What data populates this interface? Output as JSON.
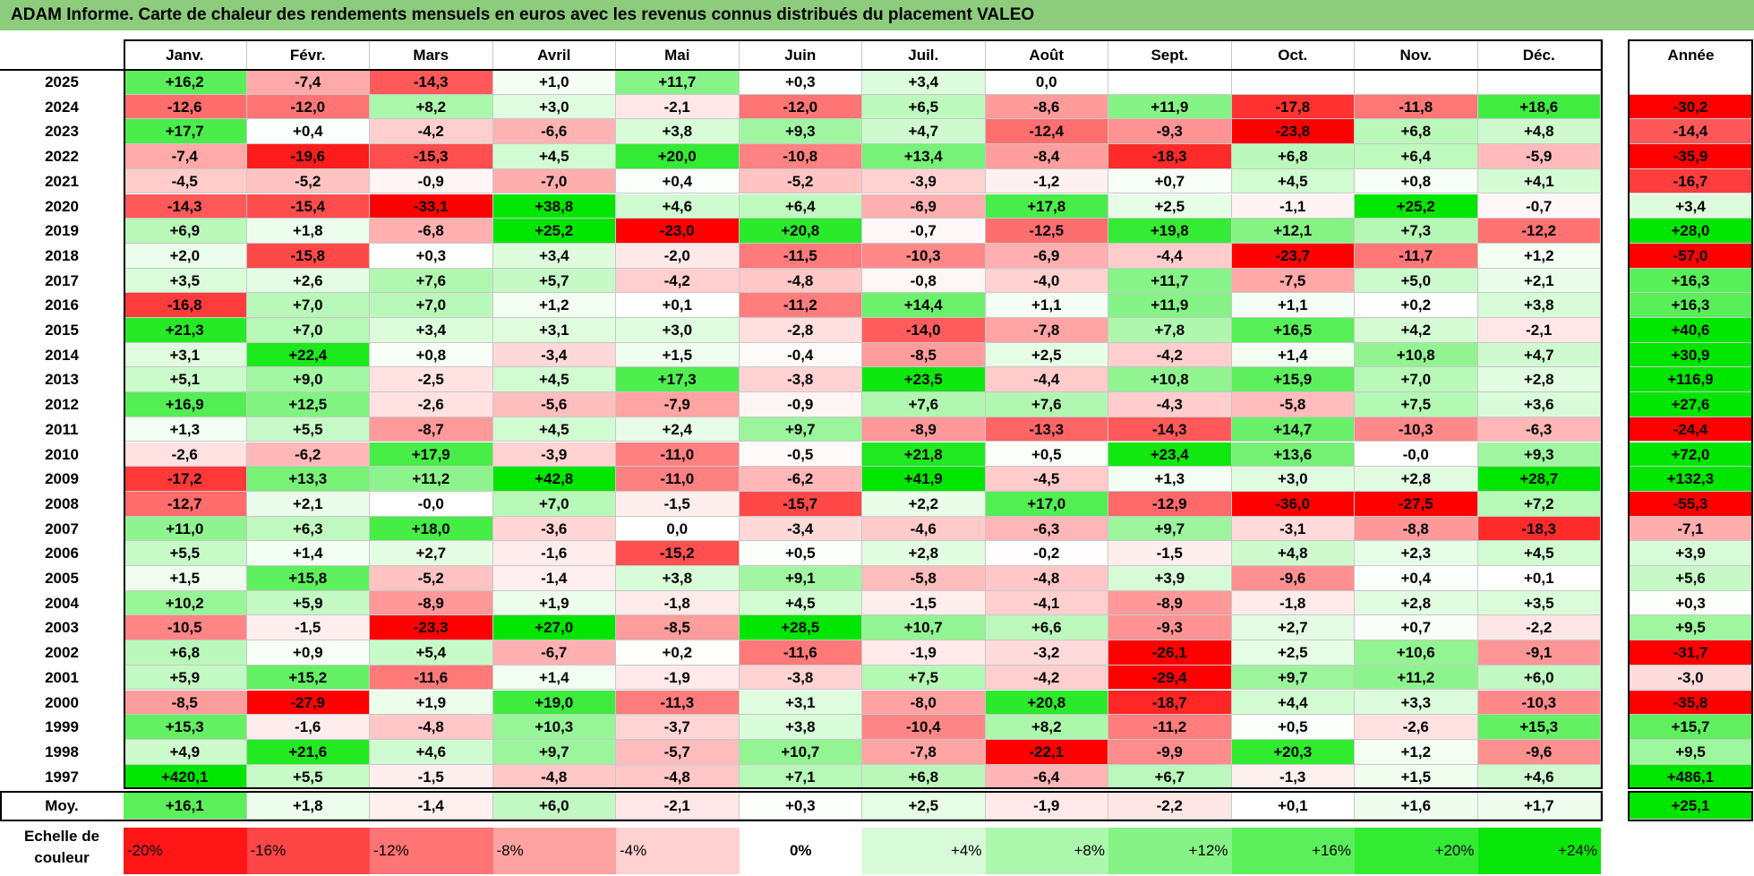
{
  "title": "ADAM Informe. Carte de chaleur des rendements mensuels en euros avec les revenus connus distribués du placement VALEO",
  "chart_data": {
    "type": "heatmap",
    "title": "ADAM Informe. Carte de chaleur des rendements mensuels en euros avec les revenus connus distribués du placement VALEO",
    "columns": [
      "Janv.",
      "Févr.",
      "Mars",
      "Avril",
      "Mai",
      "Juin",
      "Juil.",
      "Août",
      "Sept.",
      "Oct.",
      "Nov.",
      "Déc."
    ],
    "annual_header": "Année",
    "rows": [
      {
        "year": "2025",
        "values": [
          "+16,2",
          "-7,4",
          "-14,3",
          "+1,0",
          "+11,7",
          "+0,3",
          "+3,4",
          "0,0",
          "",
          "",
          "",
          ""
        ],
        "annual": ""
      },
      {
        "year": "2024",
        "values": [
          "-12,6",
          "-12,0",
          "+8,2",
          "+3,0",
          "-2,1",
          "-12,0",
          "+6,5",
          "-8,6",
          "+11,9",
          "-17,8",
          "-11,8",
          "+18,6"
        ],
        "annual": "-30,2"
      },
      {
        "year": "2023",
        "values": [
          "+17,7",
          "+0,4",
          "-4,2",
          "-6,6",
          "+3,8",
          "+9,3",
          "+4,7",
          "-12,4",
          "-9,3",
          "-23,8",
          "+6,8",
          "+4,8"
        ],
        "annual": "-14,4"
      },
      {
        "year": "2022",
        "values": [
          "-7,4",
          "-19,6",
          "-15,3",
          "+4,5",
          "+20,0",
          "-10,8",
          "+13,4",
          "-8,4",
          "-18,3",
          "+6,8",
          "+6,4",
          "-5,9"
        ],
        "annual": "-35,9"
      },
      {
        "year": "2021",
        "values": [
          "-4,5",
          "-5,2",
          "-0,9",
          "-7,0",
          "+0,4",
          "-5,2",
          "-3,9",
          "-1,2",
          "+0,7",
          "+4,5",
          "+0,8",
          "+4,1"
        ],
        "annual": "-16,7"
      },
      {
        "year": "2020",
        "values": [
          "-14,3",
          "-15,4",
          "-33,1",
          "+38,8",
          "+4,6",
          "+6,4",
          "-6,9",
          "+17,8",
          "+2,5",
          "-1,1",
          "+25,2",
          "-0,7"
        ],
        "annual": "+3,4"
      },
      {
        "year": "2019",
        "values": [
          "+6,9",
          "+1,8",
          "-6,8",
          "+25,2",
          "-23,0",
          "+20,8",
          "-0,7",
          "-12,5",
          "+19,8",
          "+12,1",
          "+7,3",
          "-12,2"
        ],
        "annual": "+28,0"
      },
      {
        "year": "2018",
        "values": [
          "+2,0",
          "-15,8",
          "+0,3",
          "+3,4",
          "-2,0",
          "-11,5",
          "-10,3",
          "-6,9",
          "-4,4",
          "-23,7",
          "-11,7",
          "+1,2"
        ],
        "annual": "-57,0"
      },
      {
        "year": "2017",
        "values": [
          "+3,5",
          "+2,6",
          "+7,6",
          "+5,7",
          "-4,2",
          "-4,8",
          "-0,8",
          "-4,0",
          "+11,7",
          "-7,5",
          "+5,0",
          "+2,1"
        ],
        "annual": "+16,3"
      },
      {
        "year": "2016",
        "values": [
          "-16,8",
          "+7,0",
          "+7,0",
          "+1,2",
          "+0,1",
          "-11,2",
          "+14,4",
          "+1,1",
          "+11,9",
          "+1,1",
          "+0,2",
          "+3,8"
        ],
        "annual": "+16,3"
      },
      {
        "year": "2015",
        "values": [
          "+21,3",
          "+7,0",
          "+3,4",
          "+3,1",
          "+3,0",
          "-2,8",
          "-14,0",
          "-7,8",
          "+7,8",
          "+16,5",
          "+4,2",
          "-2,1"
        ],
        "annual": "+40,6"
      },
      {
        "year": "2014",
        "values": [
          "+3,1",
          "+22,4",
          "+0,8",
          "-3,4",
          "+1,5",
          "-0,4",
          "-8,5",
          "+2,5",
          "-4,2",
          "+1,4",
          "+10,8",
          "+4,7"
        ],
        "annual": "+30,9"
      },
      {
        "year": "2013",
        "values": [
          "+5,1",
          "+9,0",
          "-2,5",
          "+4,5",
          "+17,3",
          "-3,8",
          "+23,5",
          "-4,4",
          "+10,8",
          "+15,9",
          "+7,0",
          "+2,8"
        ],
        "annual": "+116,9"
      },
      {
        "year": "2012",
        "values": [
          "+16,9",
          "+12,5",
          "-2,6",
          "-5,6",
          "-7,9",
          "-0,9",
          "+7,6",
          "+7,6",
          "-4,3",
          "-5,8",
          "+7,5",
          "+3,6"
        ],
        "annual": "+27,6"
      },
      {
        "year": "2011",
        "values": [
          "+1,3",
          "+5,5",
          "-8,7",
          "+4,5",
          "+2,4",
          "+9,7",
          "-8,9",
          "-13,3",
          "-14,3",
          "+14,7",
          "-10,3",
          "-6,3"
        ],
        "annual": "-24,4"
      },
      {
        "year": "2010",
        "values": [
          "-2,6",
          "-6,2",
          "+17,9",
          "-3,9",
          "-11,0",
          "-0,5",
          "+21,8",
          "+0,5",
          "+23,4",
          "+13,6",
          "-0,0",
          "+9,3"
        ],
        "annual": "+72,0"
      },
      {
        "year": "2009",
        "values": [
          "-17,2",
          "+13,3",
          "+11,2",
          "+42,8",
          "-11,0",
          "-6,2",
          "+41,9",
          "-4,5",
          "+1,3",
          "+3,0",
          "+2,8",
          "+28,7"
        ],
        "annual": "+132,3"
      },
      {
        "year": "2008",
        "values": [
          "-12,7",
          "+2,1",
          "-0,0",
          "+7,0",
          "-1,5",
          "-15,7",
          "+2,2",
          "+17,0",
          "-12,9",
          "-36,0",
          "-27,5",
          "+7,2"
        ],
        "annual": "-55,3"
      },
      {
        "year": "2007",
        "values": [
          "+11,0",
          "+6,3",
          "+18,0",
          "-3,6",
          "0,0",
          "-3,4",
          "-4,6",
          "-6,3",
          "+9,7",
          "-3,1",
          "-8,8",
          "-18,3"
        ],
        "annual": "-7,1"
      },
      {
        "year": "2006",
        "values": [
          "+5,5",
          "+1,4",
          "+2,7",
          "-1,6",
          "-15,2",
          "+0,5",
          "+2,8",
          "-0,2",
          "-1,5",
          "+4,8",
          "+2,3",
          "+4,5"
        ],
        "annual": "+3,9"
      },
      {
        "year": "2005",
        "values": [
          "+1,5",
          "+15,8",
          "-5,2",
          "-1,4",
          "+3,8",
          "+9,1",
          "-5,8",
          "-4,8",
          "+3,9",
          "-9,6",
          "+0,4",
          "+0,1"
        ],
        "annual": "+5,6"
      },
      {
        "year": "2004",
        "values": [
          "+10,2",
          "+5,9",
          "-8,9",
          "+1,9",
          "-1,8",
          "+4,5",
          "-1,5",
          "-4,1",
          "-8,9",
          "-1,8",
          "+2,8",
          "+3,5"
        ],
        "annual": "+0,3"
      },
      {
        "year": "2003",
        "values": [
          "-10,5",
          "-1,5",
          "-23,3",
          "+27,0",
          "-8,5",
          "+28,5",
          "+10,7",
          "+6,6",
          "-9,3",
          "+2,7",
          "+0,7",
          "-2,2"
        ],
        "annual": "+9,5"
      },
      {
        "year": "2002",
        "values": [
          "+6,8",
          "+0,9",
          "+5,4",
          "-6,7",
          "+0,2",
          "-11,6",
          "-1,9",
          "-3,2",
          "-26,1",
          "+2,5",
          "+10,6",
          "-9,1"
        ],
        "annual": "-31,7"
      },
      {
        "year": "2001",
        "values": [
          "+5,9",
          "+15,2",
          "-11,6",
          "+1,4",
          "-1,9",
          "-3,8",
          "+7,5",
          "-4,2",
          "-29,4",
          "+9,7",
          "+11,2",
          "+6,0"
        ],
        "annual": "-3,0"
      },
      {
        "year": "2000",
        "values": [
          "-8,5",
          "-27,9",
          "+1,9",
          "+19,0",
          "-11,3",
          "+3,1",
          "-8,0",
          "+20,8",
          "-18,7",
          "+4,4",
          "+3,3",
          "-10,3"
        ],
        "annual": "-35,8"
      },
      {
        "year": "1999",
        "values": [
          "+15,3",
          "-1,6",
          "-4,8",
          "+10,3",
          "-3,7",
          "+3,8",
          "-10,4",
          "+8,2",
          "-11,2",
          "+0,5",
          "-2,6",
          "+15,3"
        ],
        "annual": "+15,7"
      },
      {
        "year": "1998",
        "values": [
          "+4,9",
          "+21,6",
          "+4,6",
          "+9,7",
          "-5,7",
          "+10,7",
          "-7,8",
          "-22,1",
          "-9,9",
          "+20,3",
          "+1,2",
          "-9,6"
        ],
        "annual": "+9,5"
      },
      {
        "year": "1997",
        "values": [
          "+420,1",
          "+5,5",
          "-1,5",
          "-4,8",
          "-4,8",
          "+7,1",
          "+6,8",
          "-6,4",
          "+6,7",
          "-1,3",
          "+1,5",
          "+4,6"
        ],
        "annual": "+486,1"
      }
    ],
    "average": {
      "label": "Moy.",
      "values": [
        "+16,1",
        "+1,8",
        "-1,4",
        "+6,0",
        "-2,1",
        "+0,3",
        "+2,5",
        "-1,9",
        "-2,2",
        "+0,1",
        "+1,6",
        "+1,7"
      ],
      "annual": "+25,1"
    },
    "scale": {
      "label": "Echelle de couleur",
      "steps": [
        {
          "text": "-20%",
          "value": -20
        },
        {
          "text": "-16%",
          "value": -16
        },
        {
          "text": "-12%",
          "value": -12
        },
        {
          "text": "-8%",
          "value": -8
        },
        {
          "text": "-4%",
          "value": -4
        },
        {
          "text": "0%",
          "value": 0
        },
        {
          "text": "+4%",
          "value": 4
        },
        {
          "text": "+8%",
          "value": 8
        },
        {
          "text": "+12%",
          "value": 12
        },
        {
          "text": "+16%",
          "value": 16
        },
        {
          "text": "+20%",
          "value": 20
        },
        {
          "text": "+24%",
          "value": 24
        }
      ]
    },
    "colors": {
      "negative": "#ff0000",
      "neutral": "#ffffff",
      "positive": "#00e600"
    }
  }
}
